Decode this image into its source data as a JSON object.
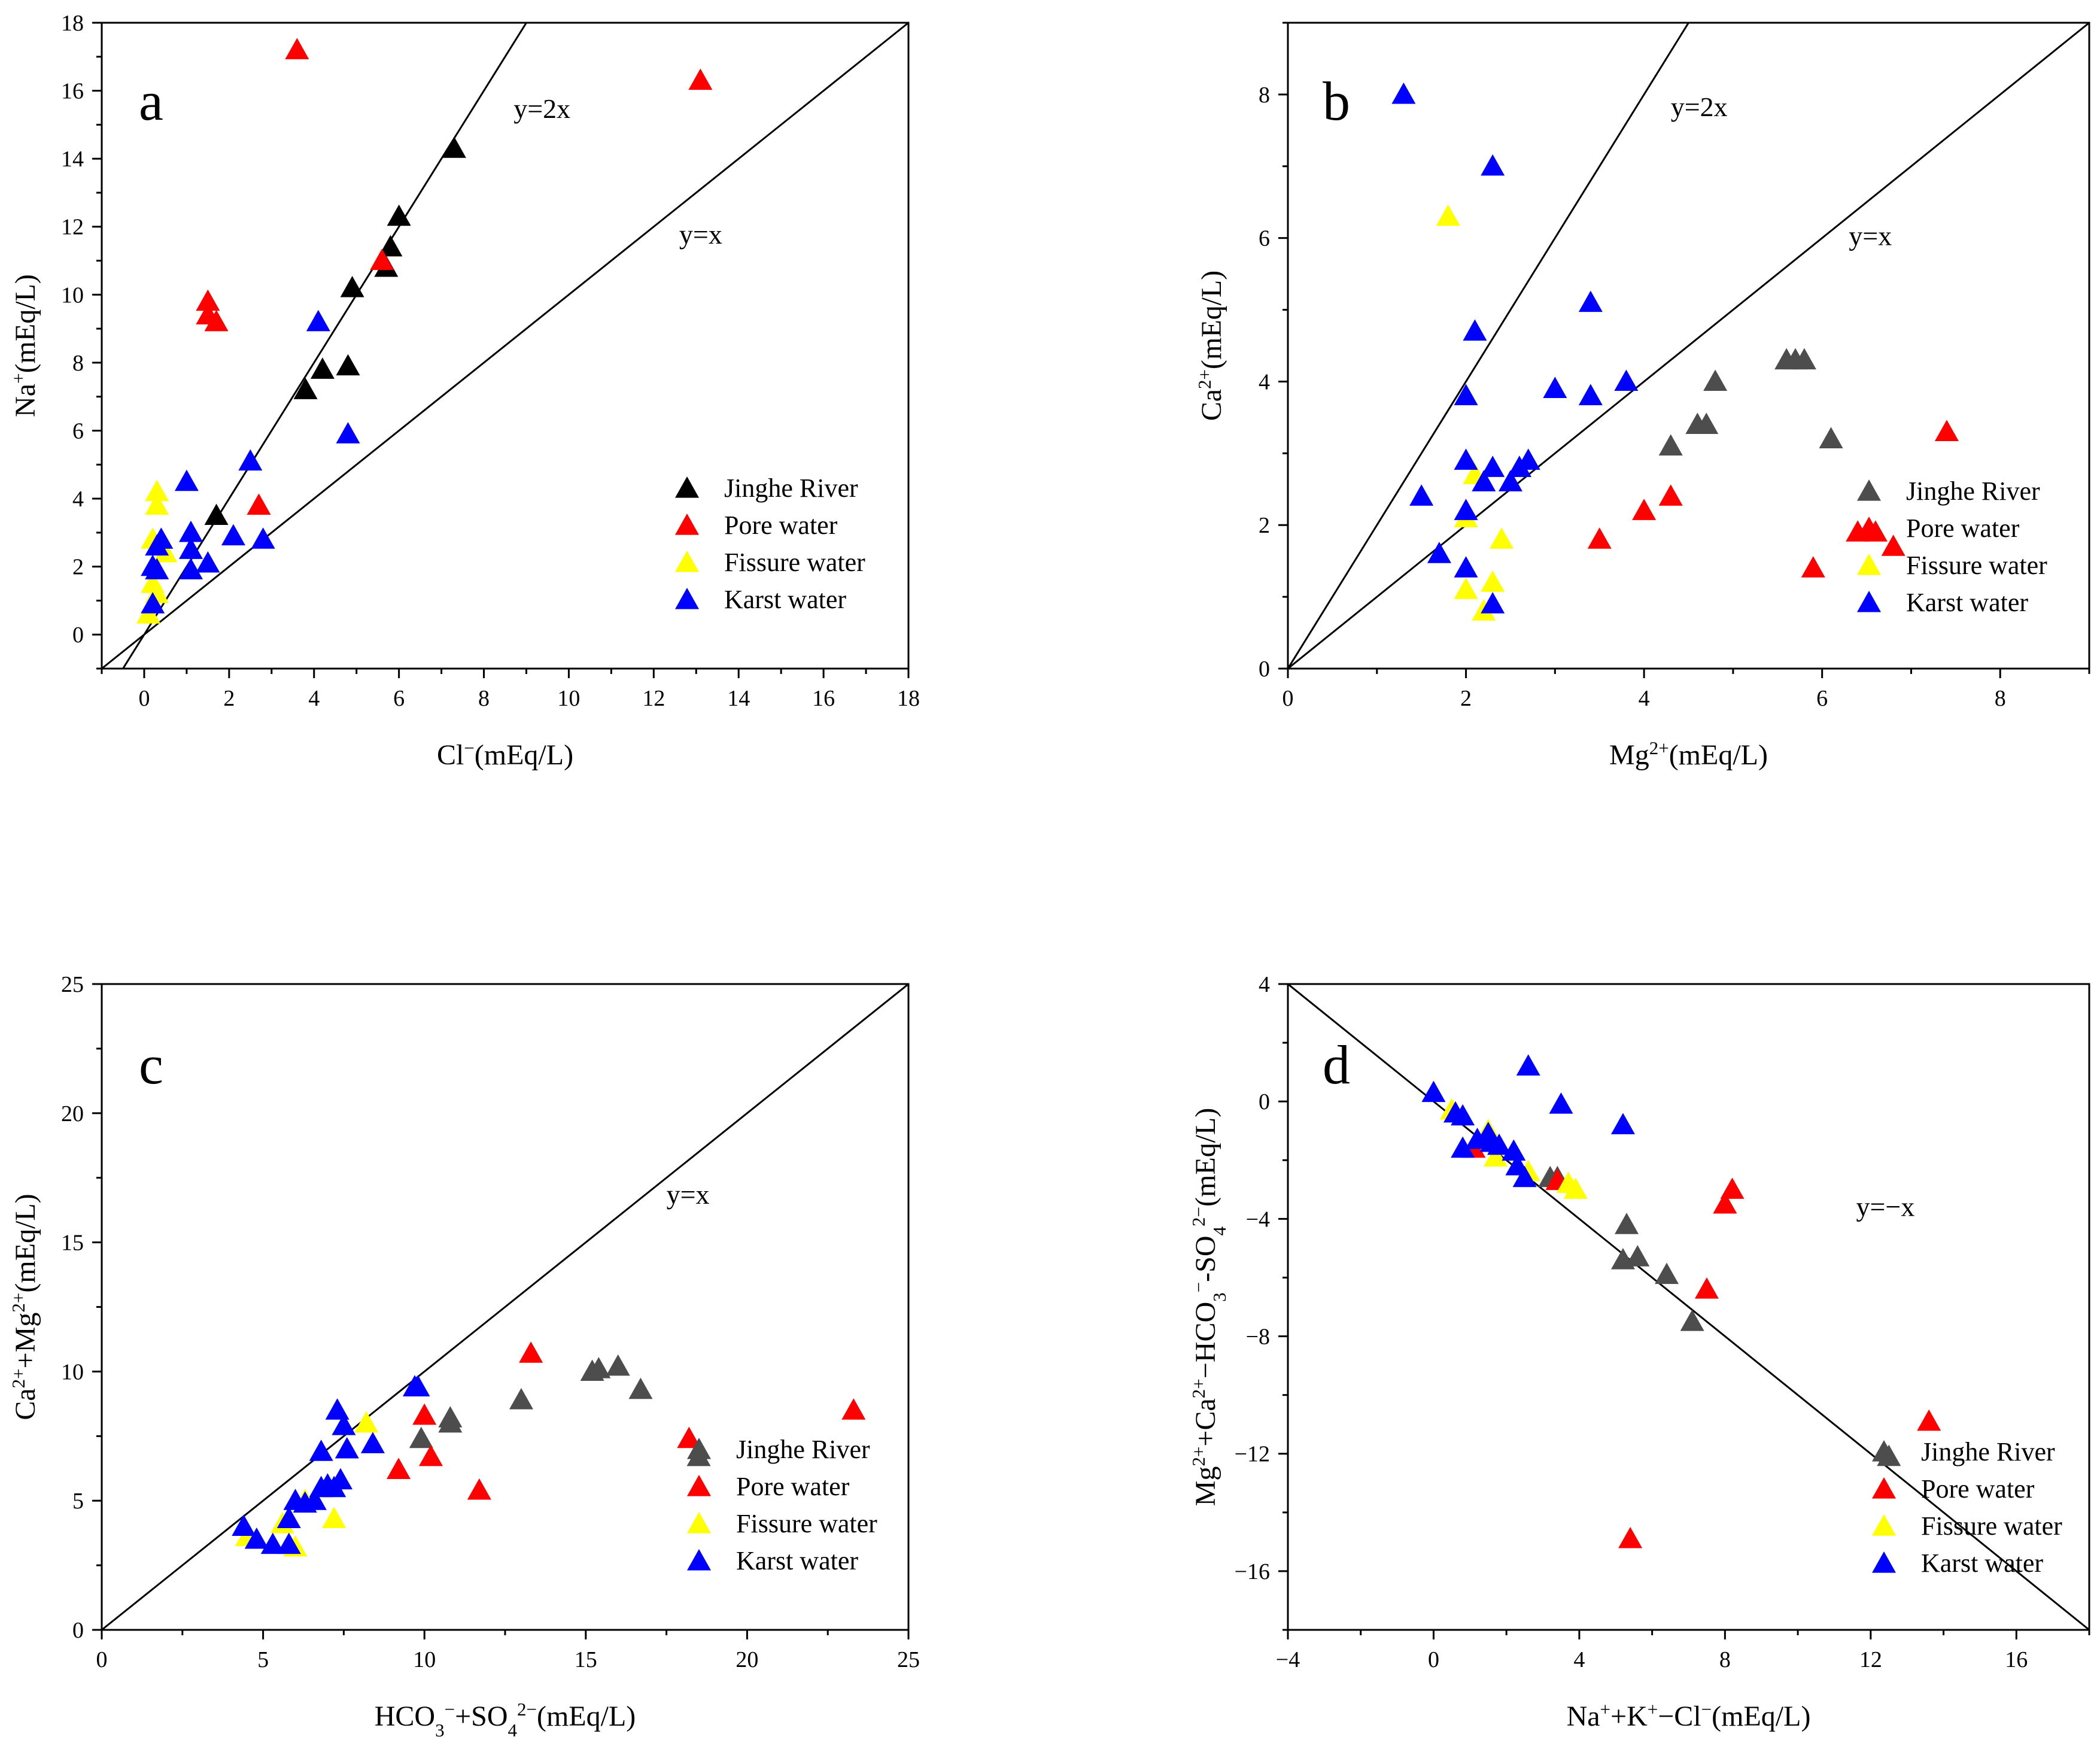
{
  "figure": {
    "legend_labels": [
      "Jinghe River",
      "Pore water",
      "Fissure water",
      "Karst water"
    ]
  },
  "colors": {
    "jinghe_ab": "#000000",
    "jinghe_bcd": "#4d4d4d",
    "pore": "#ff0000",
    "fissure": "#ffff00",
    "karst": "#0000ff",
    "axis": "#000000",
    "line": "#000000"
  },
  "chart_data": [
    {
      "panel": "a",
      "type": "scatter",
      "xlabel": "Cl⁻(mEq/L)",
      "ylabel": "Na⁺(mEq/L)",
      "xlim": [
        -1,
        18
      ],
      "ylim": [
        -1,
        18
      ],
      "xticks": [
        0,
        2,
        4,
        6,
        8,
        10,
        12,
        14,
        16,
        18
      ],
      "yticks": [
        0,
        2,
        4,
        6,
        8,
        10,
        12,
        14,
        16,
        18
      ],
      "lines": [
        {
          "label": "y=2x",
          "slope": 2,
          "intercept": 0,
          "label_at": [
            8.7,
            15.2
          ]
        },
        {
          "label": "y=x",
          "slope": 1,
          "intercept": 0,
          "label_at": [
            12.6,
            11.5
          ]
        }
      ],
      "legend_position": "right-middle",
      "series": [
        {
          "name": "Jinghe River",
          "color_key": "jinghe_ab",
          "points": [
            [
              1.7,
              3.5
            ],
            [
              3.8,
              7.2
            ],
            [
              4.2,
              7.8
            ],
            [
              4.8,
              7.9
            ],
            [
              4.9,
              10.2
            ],
            [
              5.7,
              10.8
            ],
            [
              5.8,
              11.4
            ],
            [
              6.0,
              12.3
            ],
            [
              7.3,
              14.3
            ]
          ]
        },
        {
          "name": "Pore water",
          "color_key": "pore",
          "points": [
            [
              3.6,
              17.2
            ],
            [
              13.1,
              16.3
            ],
            [
              1.5,
              9.8
            ],
            [
              1.5,
              9.4
            ],
            [
              1.7,
              9.2
            ],
            [
              5.6,
              11.0
            ],
            [
              2.7,
              3.8
            ]
          ]
        },
        {
          "name": "Fissure water",
          "color_key": "fissure",
          "points": [
            [
              0.3,
              4.2
            ],
            [
              0.3,
              3.8
            ],
            [
              0.2,
              2.8
            ],
            [
              0.5,
              2.4
            ],
            [
              0.2,
              1.5
            ],
            [
              0.3,
              1.2
            ],
            [
              0.1,
              0.6
            ]
          ]
        },
        {
          "name": "Karst water",
          "color_key": "karst",
          "points": [
            [
              4.1,
              9.2
            ],
            [
              4.8,
              5.9
            ],
            [
              2.5,
              5.1
            ],
            [
              1.0,
              4.5
            ],
            [
              0.4,
              2.8
            ],
            [
              0.3,
              2.6
            ],
            [
              1.1,
              3.0
            ],
            [
              1.1,
              2.5
            ],
            [
              2.1,
              2.9
            ],
            [
              2.8,
              2.8
            ],
            [
              1.5,
              2.1
            ],
            [
              1.1,
              1.9
            ],
            [
              0.2,
              2.0
            ],
            [
              0.3,
              1.9
            ],
            [
              0.2,
              0.9
            ]
          ]
        }
      ]
    },
    {
      "panel": "b",
      "type": "scatter",
      "xlabel": "Mg²⁺(mEq/L)",
      "ylabel": "Ca²⁺(mEq/L)",
      "xlim": [
        0,
        9
      ],
      "ylim": [
        0,
        9
      ],
      "xticks": [
        0,
        2,
        4,
        6,
        8
      ],
      "yticks": [
        0,
        2,
        4,
        6,
        8
      ],
      "lines": [
        {
          "label": "y=2x",
          "slope": 2,
          "intercept": 0,
          "label_at": [
            4.3,
            7.7
          ]
        },
        {
          "label": "y=x",
          "slope": 1,
          "intercept": 0,
          "label_at": [
            6.3,
            5.9
          ]
        }
      ],
      "legend_position": "right-bottom",
      "series": [
        {
          "name": "Jinghe River",
          "color_key": "jinghe_bcd",
          "points": [
            [
              2.6,
              2.8
            ],
            [
              4.3,
              3.1
            ],
            [
              4.6,
              3.4
            ],
            [
              4.7,
              3.4
            ],
            [
              4.8,
              4.0
            ],
            [
              5.6,
              4.3
            ],
            [
              5.7,
              4.3
            ],
            [
              5.8,
              4.3
            ],
            [
              6.1,
              3.2
            ]
          ]
        },
        {
          "name": "Pore water",
          "color_key": "pore",
          "points": [
            [
              3.5,
              1.8
            ],
            [
              4.0,
              2.2
            ],
            [
              4.3,
              2.4
            ],
            [
              5.9,
              1.4
            ],
            [
              6.4,
              1.9
            ],
            [
              6.6,
              1.9
            ],
            [
              6.8,
              1.7
            ],
            [
              7.4,
              3.3
            ]
          ]
        },
        {
          "name": "Fissure water",
          "color_key": "fissure",
          "points": [
            [
              1.8,
              6.3
            ],
            [
              2.1,
              2.7
            ],
            [
              2.0,
              2.1
            ],
            [
              2.4,
              1.8
            ],
            [
              2.3,
              1.2
            ],
            [
              2.0,
              1.1
            ],
            [
              2.2,
              0.8
            ]
          ]
        },
        {
          "name": "Karst water",
          "color_key": "karst",
          "points": [
            [
              1.3,
              8.0
            ],
            [
              2.3,
              7.0
            ],
            [
              2.1,
              4.7
            ],
            [
              2.0,
              3.8
            ],
            [
              3.4,
              5.1
            ],
            [
              3.0,
              3.9
            ],
            [
              3.4,
              3.8
            ],
            [
              3.8,
              4.0
            ],
            [
              2.0,
              2.9
            ],
            [
              2.3,
              2.8
            ],
            [
              2.2,
              2.6
            ],
            [
              2.6,
              2.8
            ],
            [
              2.7,
              2.9
            ],
            [
              2.5,
              2.6
            ],
            [
              1.5,
              2.4
            ],
            [
              2.0,
              2.2
            ],
            [
              1.7,
              1.6
            ],
            [
              2.0,
              1.4
            ],
            [
              2.3,
              0.9
            ]
          ]
        }
      ]
    },
    {
      "panel": "c",
      "type": "scatter",
      "xlabel": "HCO₃⁻+SO₄²⁻(mEq/L)",
      "ylabel": "Ca²⁺+Mg²⁺(mEq/L)",
      "xlim": [
        0,
        25
      ],
      "ylim": [
        0,
        25
      ],
      "xticks": [
        0,
        5,
        10,
        15,
        20,
        25
      ],
      "yticks": [
        0,
        5,
        10,
        15,
        20,
        25
      ],
      "lines": [
        {
          "label": "y=x",
          "slope": 1,
          "intercept": 0,
          "label_at": [
            17.5,
            16.5
          ]
        }
      ],
      "legend_position": "right-bottom",
      "series": [
        {
          "name": "Jinghe River",
          "color_key": "jinghe_bcd",
          "points": [
            [
              9.9,
              7.4
            ],
            [
              10.8,
              8.2
            ],
            [
              10.8,
              8.0
            ],
            [
              13.0,
              8.9
            ],
            [
              15.2,
              10.0
            ],
            [
              15.4,
              10.1
            ],
            [
              16.0,
              10.2
            ],
            [
              16.7,
              9.3
            ],
            [
              18.5,
              6.7
            ]
          ]
        },
        {
          "name": "Pore water",
          "color_key": "pore",
          "points": [
            [
              9.2,
              6.2
            ],
            [
              10.0,
              8.3
            ],
            [
              10.2,
              6.7
            ],
            [
              11.7,
              5.4
            ],
            [
              13.3,
              10.7
            ],
            [
              18.2,
              7.4
            ],
            [
              23.3,
              8.5
            ]
          ]
        },
        {
          "name": "Fissure water",
          "color_key": "fissure",
          "points": [
            [
              4.5,
              3.6
            ],
            [
              5.6,
              4.1
            ],
            [
              6.0,
              3.2
            ],
            [
              6.3,
              5.0
            ],
            [
              7.2,
              4.3
            ],
            [
              8.2,
              8.0
            ]
          ]
        },
        {
          "name": "Karst water",
          "color_key": "karst",
          "points": [
            [
              4.4,
              4.0
            ],
            [
              4.8,
              3.5
            ],
            [
              5.3,
              3.3
            ],
            [
              5.8,
              4.3
            ],
            [
              5.8,
              3.3
            ],
            [
              6.0,
              5.0
            ],
            [
              6.3,
              4.9
            ],
            [
              6.6,
              5.0
            ],
            [
              6.8,
              5.5
            ],
            [
              7.0,
              5.6
            ],
            [
              7.2,
              5.5
            ],
            [
              7.4,
              5.8
            ],
            [
              6.8,
              6.9
            ],
            [
              7.6,
              7.0
            ],
            [
              8.4,
              7.2
            ],
            [
              7.3,
              8.5
            ],
            [
              7.5,
              7.9
            ],
            [
              9.7,
              9.4
            ],
            [
              9.8,
              9.4
            ]
          ]
        }
      ]
    },
    {
      "panel": "d",
      "type": "scatter",
      "xlabel": "Na⁺+K⁺−Cl⁻(mEq/L)",
      "ylabel": "Mg²⁺+Ca²⁺−HCO₃⁻-SO₄²⁻(mEq/L)",
      "xlim": [
        -4,
        18
      ],
      "ylim": [
        -18,
        4
      ],
      "xticks": [
        -4,
        0,
        4,
        8,
        12,
        16
      ],
      "yticks": [
        -16,
        -12,
        -8,
        -4,
        0,
        4
      ],
      "lines": [
        {
          "label": "y=−x",
          "slope": -1,
          "intercept": 0,
          "label_at": [
            11.6,
            -3.9
          ]
        }
      ],
      "legend_position": "right-bottom",
      "series": [
        {
          "name": "Jinghe River",
          "color_key": "jinghe_bcd",
          "points": [
            [
              3.2,
              -2.6
            ],
            [
              3.4,
              -2.6
            ],
            [
              5.3,
              -4.2
            ],
            [
              5.2,
              -5.4
            ],
            [
              5.6,
              -5.3
            ],
            [
              6.4,
              -5.9
            ],
            [
              7.1,
              -7.5
            ],
            [
              12.5,
              -12.1
            ]
          ]
        },
        {
          "name": "Pore water",
          "color_key": "pore",
          "points": [
            [
              1.1,
              -1.6
            ],
            [
              3.4,
              -2.7
            ],
            [
              7.5,
              -6.4
            ],
            [
              8.0,
              -3.5
            ],
            [
              8.2,
              -3.0
            ],
            [
              5.4,
              -14.9
            ],
            [
              13.6,
              -10.9
            ]
          ]
        },
        {
          "name": "Fissure water",
          "color_key": "fissure",
          "points": [
            [
              0.5,
              -0.3
            ],
            [
              1.5,
              -1.0
            ],
            [
              2.6,
              -2.4
            ],
            [
              3.7,
              -2.8
            ],
            [
              3.9,
              -3.0
            ],
            [
              1.7,
              -1.9
            ]
          ]
        },
        {
          "name": "Karst water",
          "color_key": "karst",
          "points": [
            [
              0.0,
              0.3
            ],
            [
              0.6,
              -0.4
            ],
            [
              0.8,
              -0.5
            ],
            [
              0.8,
              -1.6
            ],
            [
              1.2,
              -1.3
            ],
            [
              1.5,
              -1.1
            ],
            [
              1.6,
              -1.4
            ],
            [
              1.8,
              -1.5
            ],
            [
              2.2,
              -1.7
            ],
            [
              2.3,
              -2.2
            ],
            [
              2.5,
              -2.6
            ],
            [
              2.6,
              1.2
            ],
            [
              3.5,
              -0.1
            ],
            [
              5.2,
              -0.8
            ]
          ]
        }
      ]
    }
  ],
  "panel_labels": [
    "a",
    "b",
    "c",
    "d"
  ]
}
